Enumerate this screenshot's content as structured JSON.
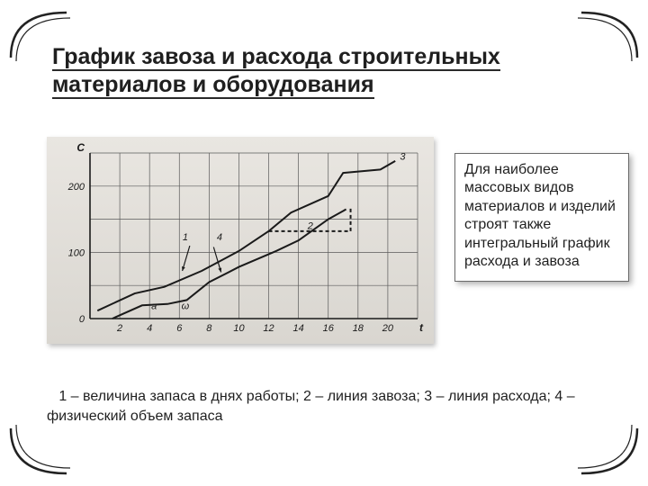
{
  "title": "График завоза и расхода строительных материалов и оборудования",
  "info_text": "Для наиболее массовых видов материалов и изделий строят также интегральный график расхода и завоза",
  "caption": "   1 – величина запаса в днях работы; 2 – линия завоза; 3 – линия расхода; 4 – физический объем запаса",
  "chart": {
    "type": "line",
    "background_color": "#e3dfd9",
    "grid_color": "#5a5a5a",
    "axis_color": "#1a1a1a",
    "line_color": "#1a1a1a",
    "line_width": 2,
    "y_axis_label": "C",
    "y_ticks": [
      0,
      100,
      200
    ],
    "y_range": [
      0,
      250
    ],
    "x_axis_label": "t",
    "x_ticks": [
      2,
      4,
      6,
      8,
      10,
      12,
      14,
      16,
      18,
      20
    ],
    "x_range": [
      0,
      22
    ],
    "grid_y_lines": [
      0,
      50,
      100,
      150,
      200,
      250
    ],
    "grid_x_lines": [
      0,
      2,
      4,
      6,
      8,
      10,
      12,
      14,
      16,
      18,
      20,
      22
    ],
    "series": {
      "line3_top": [
        [
          0.5,
          12
        ],
        [
          3,
          38
        ],
        [
          5,
          48
        ],
        [
          7.5,
          72
        ],
        [
          10,
          102
        ],
        [
          12,
          132
        ],
        [
          13.5,
          160
        ],
        [
          16,
          185
        ],
        [
          17,
          220
        ],
        [
          19.5,
          225
        ],
        [
          20.5,
          238
        ]
      ],
      "line2_bottom": [
        [
          1.5,
          0
        ],
        [
          3.5,
          20
        ],
        [
          5.2,
          22
        ],
        [
          6.5,
          28
        ],
        [
          8,
          55
        ],
        [
          10,
          78
        ],
        [
          12.5,
          102
        ],
        [
          14,
          118
        ],
        [
          16,
          150
        ],
        [
          17.2,
          165
        ]
      ],
      "aux_dash_segments": [
        [
          [
            12,
            132
          ],
          [
            17.5,
            132
          ]
        ],
        [
          [
            17.5,
            132
          ],
          [
            17.5,
            167
          ]
        ]
      ],
      "markers_arrows": [
        {
          "from": [
            6.7,
            110
          ],
          "to": [
            6.2,
            72
          ]
        },
        {
          "from": [
            8.3,
            108
          ],
          "to": [
            8.8,
            70
          ]
        }
      ],
      "inner_labels": [
        {
          "text": "1",
          "x": 6.4,
          "y": 118
        },
        {
          "text": "4",
          "x": 8.7,
          "y": 118
        },
        {
          "text": "2",
          "x": 14.8,
          "y": 135
        },
        {
          "text": "3",
          "x": 21.0,
          "y": 240
        },
        {
          "text": "a",
          "x": 4.3,
          "y": 14
        },
        {
          "text": "ω",
          "x": 6.4,
          "y": 14
        }
      ]
    },
    "tick_fontsize": 11,
    "inner_label_fontsize": 11
  }
}
